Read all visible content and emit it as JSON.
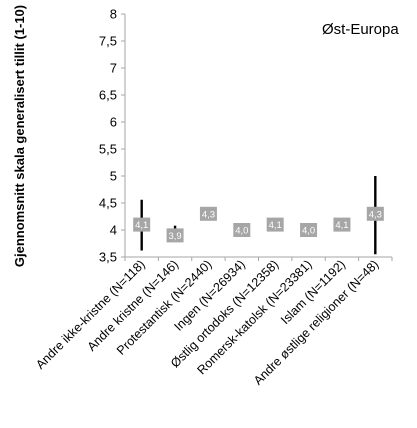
{
  "chart_data": {
    "type": "error-bar",
    "title": "Øst-Europa",
    "ylabel": "Gjennomsnitt skala generalisert tillit (1-10)",
    "ylim": [
      3.5,
      8
    ],
    "yticks": [
      "3,5",
      "4",
      "4,5",
      "5",
      "5,5",
      "6",
      "6,5",
      "7",
      "7,5",
      "8"
    ],
    "categories": [
      "Andre ikke-kristne (N=118)",
      "Andre kristne  (N=146)",
      "Protestantisk (N=2440)",
      "Ingen (N=26934)",
      "Østlig ortodoks (N=12358)",
      "Romersk-katolsk (N=23381)",
      "Islam (N=1192)",
      "Andre østlige religioner (N=48)"
    ],
    "values": [
      4.1,
      3.9,
      4.3,
      4.0,
      4.1,
      4.0,
      4.1,
      4.3
    ],
    "labels": [
      "4,1",
      "3,9",
      "4,3",
      "4,0",
      "4,1",
      "4,0",
      "4,1",
      "4,3"
    ],
    "ci_low": [
      3.62,
      3.86,
      4.22,
      3.98,
      4.07,
      3.98,
      4.02,
      3.55
    ],
    "ci_high": [
      4.56,
      4.08,
      4.32,
      4.03,
      4.13,
      4.03,
      4.18,
      5.0
    ],
    "colors": {
      "marker": "#a6a6a6",
      "bar": "#000000",
      "axis": "#a6a6a6"
    }
  }
}
